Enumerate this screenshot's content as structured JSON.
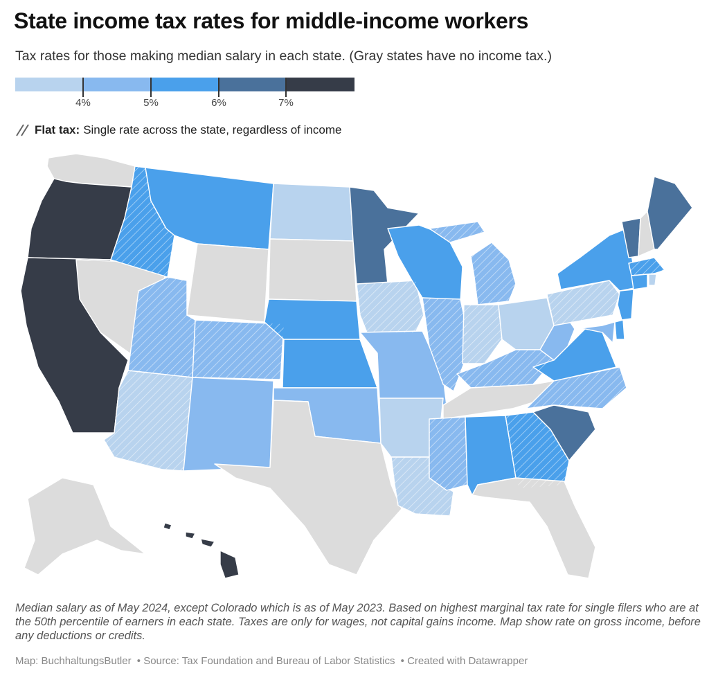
{
  "title": "State income tax rates for middle-income workers",
  "subtitle": "Tax rates for those making median salary in each state. (Gray states have no income tax.)",
  "legend": {
    "colors": [
      "#b8d3ee",
      "#88b9ef",
      "#4aa0eb",
      "#4a719b",
      "#363c48"
    ],
    "ticks": [
      "4%",
      "5%",
      "6%",
      "7%"
    ]
  },
  "flat_tax": {
    "label": "Flat tax:",
    "description": "Single rate across the state, regardless of income"
  },
  "colors": {
    "no_tax": "#dcdcdc",
    "border": "#ffffff"
  },
  "states": [
    {
      "code": "WA",
      "bin": "none",
      "flat": false
    },
    {
      "code": "OR",
      "bin": "7-plus",
      "flat": false
    },
    {
      "code": "CA",
      "bin": "7-plus",
      "flat": false
    },
    {
      "code": "NV",
      "bin": "none",
      "flat": false
    },
    {
      "code": "ID",
      "bin": "5-6",
      "flat": true
    },
    {
      "code": "MT",
      "bin": "5-6",
      "flat": false
    },
    {
      "code": "WY",
      "bin": "none",
      "flat": false
    },
    {
      "code": "UT",
      "bin": "4-5",
      "flat": true
    },
    {
      "code": "AZ",
      "bin": "under-4",
      "flat": true
    },
    {
      "code": "CO",
      "bin": "4-5",
      "flat": true
    },
    {
      "code": "NM",
      "bin": "4-5",
      "flat": false
    },
    {
      "code": "ND",
      "bin": "under-4",
      "flat": false
    },
    {
      "code": "SD",
      "bin": "none",
      "flat": false
    },
    {
      "code": "NE",
      "bin": "5-6",
      "flat": false
    },
    {
      "code": "KS",
      "bin": "5-6",
      "flat": false
    },
    {
      "code": "OK",
      "bin": "4-5",
      "flat": false
    },
    {
      "code": "TX",
      "bin": "none",
      "flat": false
    },
    {
      "code": "MN",
      "bin": "6-7",
      "flat": false
    },
    {
      "code": "IA",
      "bin": "under-4",
      "flat": true
    },
    {
      "code": "MO",
      "bin": "4-5",
      "flat": false
    },
    {
      "code": "AR",
      "bin": "under-4",
      "flat": false
    },
    {
      "code": "LA",
      "bin": "under-4",
      "flat": true
    },
    {
      "code": "WI",
      "bin": "5-6",
      "flat": false
    },
    {
      "code": "IL",
      "bin": "4-5",
      "flat": true
    },
    {
      "code": "MI",
      "bin": "4-5",
      "flat": true
    },
    {
      "code": "IN",
      "bin": "under-4",
      "flat": true
    },
    {
      "code": "OH",
      "bin": "under-4",
      "flat": false
    },
    {
      "code": "KY",
      "bin": "4-5",
      "flat": true
    },
    {
      "code": "TN",
      "bin": "none",
      "flat": false
    },
    {
      "code": "MS",
      "bin": "4-5",
      "flat": true
    },
    {
      "code": "AL",
      "bin": "5-6",
      "flat": false
    },
    {
      "code": "GA",
      "bin": "5-6",
      "flat": true
    },
    {
      "code": "FL",
      "bin": "none",
      "flat": false
    },
    {
      "code": "SC",
      "bin": "6-7",
      "flat": false
    },
    {
      "code": "NC",
      "bin": "4-5",
      "flat": true
    },
    {
      "code": "VA",
      "bin": "5-6",
      "flat": false
    },
    {
      "code": "WV",
      "bin": "4-5",
      "flat": false
    },
    {
      "code": "PA",
      "bin": "under-4",
      "flat": true
    },
    {
      "code": "NY",
      "bin": "5-6",
      "flat": false
    },
    {
      "code": "VT",
      "bin": "6-7",
      "flat": false
    },
    {
      "code": "NH",
      "bin": "none",
      "flat": false
    },
    {
      "code": "ME",
      "bin": "6-7",
      "flat": false
    },
    {
      "code": "MA",
      "bin": "5-6",
      "flat": true
    },
    {
      "code": "CT",
      "bin": "5-6",
      "flat": false
    },
    {
      "code": "RI",
      "bin": "under-4",
      "flat": false
    },
    {
      "code": "NJ",
      "bin": "5-6",
      "flat": false
    },
    {
      "code": "DE",
      "bin": "5-6",
      "flat": false
    },
    {
      "code": "MD",
      "bin": "4-5",
      "flat": false
    },
    {
      "code": "AK",
      "bin": "none",
      "flat": false
    },
    {
      "code": "HI",
      "bin": "7-plus",
      "flat": false
    }
  ],
  "footnote": "Median salary as of May 2024, except Colorado which is as of May 2023. Based on highest marginal tax rate for single filers who are at the 50th percentile of earners in each state. Taxes are only for wages, not capital gains income. Map show rate on gross income, before any deductions or credits.",
  "credits": {
    "map": "Map: BuchhaltungsButler",
    "source": "• Source: Tax Foundation and Bureau of Labor Statistics",
    "created": "• Created with Datawrapper"
  }
}
